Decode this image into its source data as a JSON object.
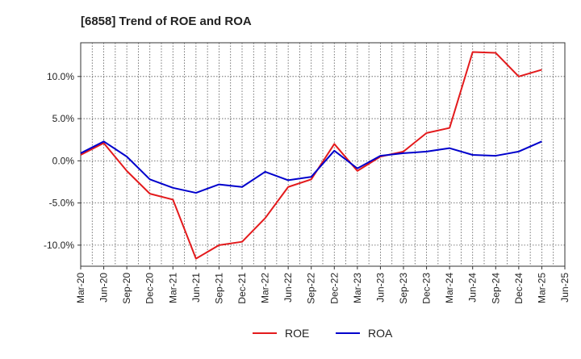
{
  "chart_data": {
    "type": "line",
    "title": "[6858]  Trend of ROE and ROA",
    "xlabel": "",
    "ylabel": "",
    "categories": [
      "Mar-20",
      "Jun-20",
      "Sep-20",
      "Dec-20",
      "Mar-21",
      "Jun-21",
      "Sep-21",
      "Dec-21",
      "Mar-22",
      "Jun-22",
      "Sep-22",
      "Dec-22",
      "Mar-23",
      "Jun-23",
      "Sep-23",
      "Dec-23",
      "Mar-24",
      "Jun-24",
      "Sep-24",
      "Dec-24",
      "Mar-25",
      "Jun-25"
    ],
    "y_ticks": [
      10.0,
      5.0,
      0.0,
      -5.0,
      -10.0
    ],
    "y_tick_labels": [
      "10.0%",
      "5.0%",
      "0.0%",
      "-5.0%",
      "-10.0%"
    ],
    "ylim": [
      -12.5,
      14.0
    ],
    "grid": true,
    "legend_position": "bottom-center",
    "series": [
      {
        "name": "ROE",
        "color": "#e31a1c",
        "values": [
          0.7,
          2.1,
          -1.2,
          -3.9,
          -4.6,
          -11.6,
          -10.0,
          -9.6,
          -6.8,
          -3.1,
          -2.2,
          2.0,
          -1.2,
          0.5,
          1.1,
          3.3,
          3.9,
          12.9,
          12.8,
          10.0,
          10.8,
          null
        ]
      },
      {
        "name": "ROA",
        "color": "#0000cc",
        "values": [
          0.9,
          2.3,
          0.5,
          -2.2,
          -3.2,
          -3.8,
          -2.8,
          -3.1,
          -1.3,
          -2.3,
          -1.9,
          1.2,
          -0.9,
          0.6,
          0.9,
          1.1,
          1.5,
          0.7,
          0.6,
          1.1,
          2.3,
          null
        ]
      }
    ]
  }
}
